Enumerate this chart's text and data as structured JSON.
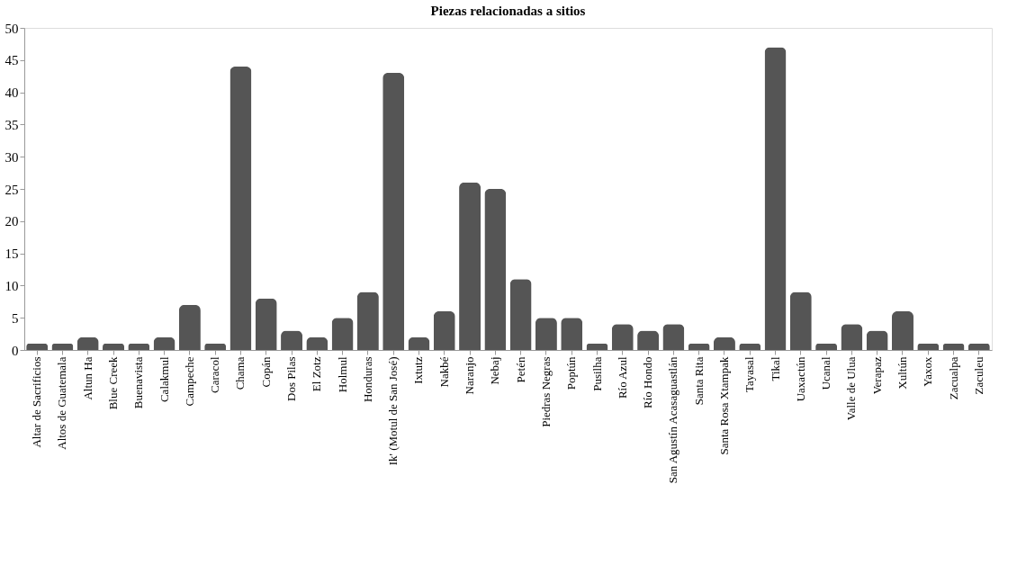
{
  "chart_data": {
    "type": "bar",
    "title": "Piezas relacionadas a sitios",
    "categories": [
      "Altar de Sacrificios",
      "Altos de Guatemala",
      "Altun Ha",
      "Blue Creek",
      "Buenavista",
      "Calakmul",
      "Campeche",
      "Caracol",
      "Chama",
      "Copán",
      "Dos Pilas",
      "El Zotz",
      "Holmul",
      "Honduras",
      "Ik' (Motul de San José)",
      "Ixtutz",
      "Nakbé",
      "Naranjo",
      "Nebaj",
      "Petén",
      "Piedras Negras",
      "Poptún",
      "Pusilha",
      "Río Azul",
      "Río Hondo",
      "San Agustín Acasaguastlán",
      "Santa Rita",
      "Santa Rosa Xtampak",
      "Tayasal",
      "Tikal",
      "Uaxactún",
      "Ucanal",
      "Valle de Ulua",
      "Verapaz",
      "Xultún",
      "Yaxox",
      "Zacualpa",
      "Zaculeu"
    ],
    "values": [
      1,
      1,
      2,
      1,
      1,
      2,
      7,
      1,
      44,
      8,
      3,
      2,
      5,
      9,
      43,
      2,
      6,
      26,
      25,
      11,
      5,
      5,
      1,
      4,
      3,
      4,
      1,
      2,
      1,
      47,
      9,
      1,
      4,
      3,
      6,
      1,
      1,
      1
    ],
    "color": "#555555",
    "ylim": [
      0,
      50
    ],
    "yticks": [
      0,
      5,
      10,
      15,
      20,
      25,
      30,
      35,
      40,
      45,
      50
    ],
    "grid": false
  }
}
